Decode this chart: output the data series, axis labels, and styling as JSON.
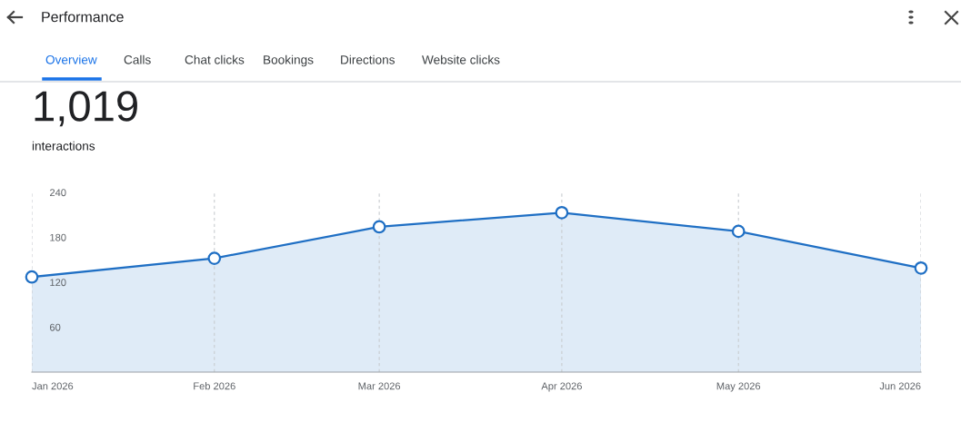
{
  "chart_data": {
    "type": "area",
    "title": "Performance",
    "subtitle": "1,019",
    "ylabel": "interactions",
    "annotations": [
      "Overview",
      "Calls",
      "Chat clicks",
      "Bookings",
      "Directions",
      "Website clicks"
    ],
    "x": [
      "2026-01",
      "2026-02",
      "2026-03",
      "2026-04",
      "2026-05",
      "2026-06"
    ],
    "series": [
      {
        "color": "#1f6fc4",
        "values": [
          127,
          152,
          194,
          213,
          188,
          139
        ]
      }
    ],
    "xlim": [
      "2026-01",
      "2026-06"
    ],
    "xticks": [
      {
        "value": "2026-01",
        "label": "Jan 2026"
      },
      {
        "value": "2026-02",
        "label": "Feb 2026"
      },
      {
        "value": "2026-03",
        "label": "Mar 2026"
      },
      {
        "value": "2026-04",
        "label": "Apr 2026"
      },
      {
        "value": "2026-05",
        "label": "May 2026"
      },
      {
        "value": "2026-06",
        "label": "Jun 2026"
      }
    ],
    "ylim": [
      0,
      240
    ],
    "yticks": [
      60,
      120,
      180,
      240
    ],
    "grid": "x",
    "marker": "circle",
    "line_style": "solid"
  }
}
